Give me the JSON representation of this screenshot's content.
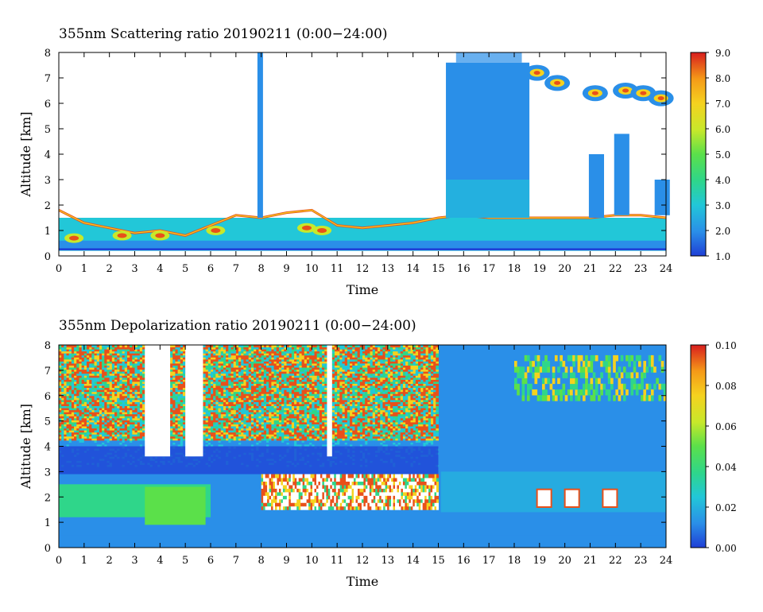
{
  "charts": [
    {
      "title": "355nm Scattering ratio  20190211 (0:00−24:00)",
      "xlabel": "Time",
      "ylabel": "Altitude [km]",
      "xticks": [
        "0",
        "1",
        "2",
        "3",
        "4",
        "5",
        "6",
        "7",
        "8",
        "9",
        "10",
        "11",
        "12",
        "13",
        "14",
        "15",
        "16",
        "17",
        "18",
        "19",
        "20",
        "21",
        "22",
        "23",
        "24"
      ],
      "yticks": [
        "0",
        "1",
        "2",
        "3",
        "4",
        "5",
        "6",
        "7",
        "8"
      ],
      "cbar_ticks": [
        "1.0",
        "2.0",
        "3.0",
        "4.0",
        "5.0",
        "6.0",
        "7.0",
        "8.0",
        "9.0"
      ]
    },
    {
      "title": "355nm Depolarization ratio  20190211 (0:00−24:00)",
      "xlabel": "Time",
      "ylabel": "Altitude [km]",
      "xticks": [
        "0",
        "1",
        "2",
        "3",
        "4",
        "5",
        "6",
        "7",
        "8",
        "9",
        "10",
        "11",
        "12",
        "13",
        "14",
        "15",
        "16",
        "17",
        "18",
        "19",
        "20",
        "21",
        "22",
        "23",
        "24"
      ],
      "yticks": [
        "0",
        "1",
        "2",
        "3",
        "4",
        "5",
        "6",
        "7",
        "8"
      ],
      "cbar_ticks": [
        "0.00",
        "0.02",
        "0.04",
        "0.06",
        "0.08",
        "0.10"
      ]
    }
  ],
  "chart_data": [
    {
      "type": "heatmap",
      "title": "355nm Scattering ratio  20190211 (0:00−24:00)",
      "xlabel": "Time",
      "ylabel": "Altitude [km]",
      "xlim": [
        0,
        24
      ],
      "ylim": [
        0,
        8
      ],
      "colorbar_range": [
        1.0,
        9.0
      ],
      "colorbar_ticks": [
        1.0,
        2.0,
        3.0,
        4.0,
        5.0,
        6.0,
        7.0,
        8.0,
        9.0
      ],
      "colormap": [
        "#1f3fd6",
        "#2a8fe8",
        "#22c7d8",
        "#2fd68a",
        "#5be04a",
        "#c8e82a",
        "#f5d21f",
        "#f59a18",
        "#e8501a",
        "#d81e1e"
      ]
    },
    {
      "type": "heatmap",
      "title": "355nm Depolarization ratio  20190211 (0:00−24:00)",
      "xlabel": "Time",
      "ylabel": "Altitude [km]",
      "xlim": [
        0,
        24
      ],
      "ylim": [
        0,
        8
      ],
      "colorbar_range": [
        0.0,
        0.1
      ],
      "colorbar_ticks": [
        0.0,
        0.02,
        0.04,
        0.06,
        0.08,
        0.1
      ],
      "colormap": [
        "#1f3fd6",
        "#2a8fe8",
        "#22c7d8",
        "#2fd68a",
        "#5be04a",
        "#c8e82a",
        "#f5d21f",
        "#f59a18",
        "#e8501a",
        "#d81e1e"
      ]
    }
  ]
}
